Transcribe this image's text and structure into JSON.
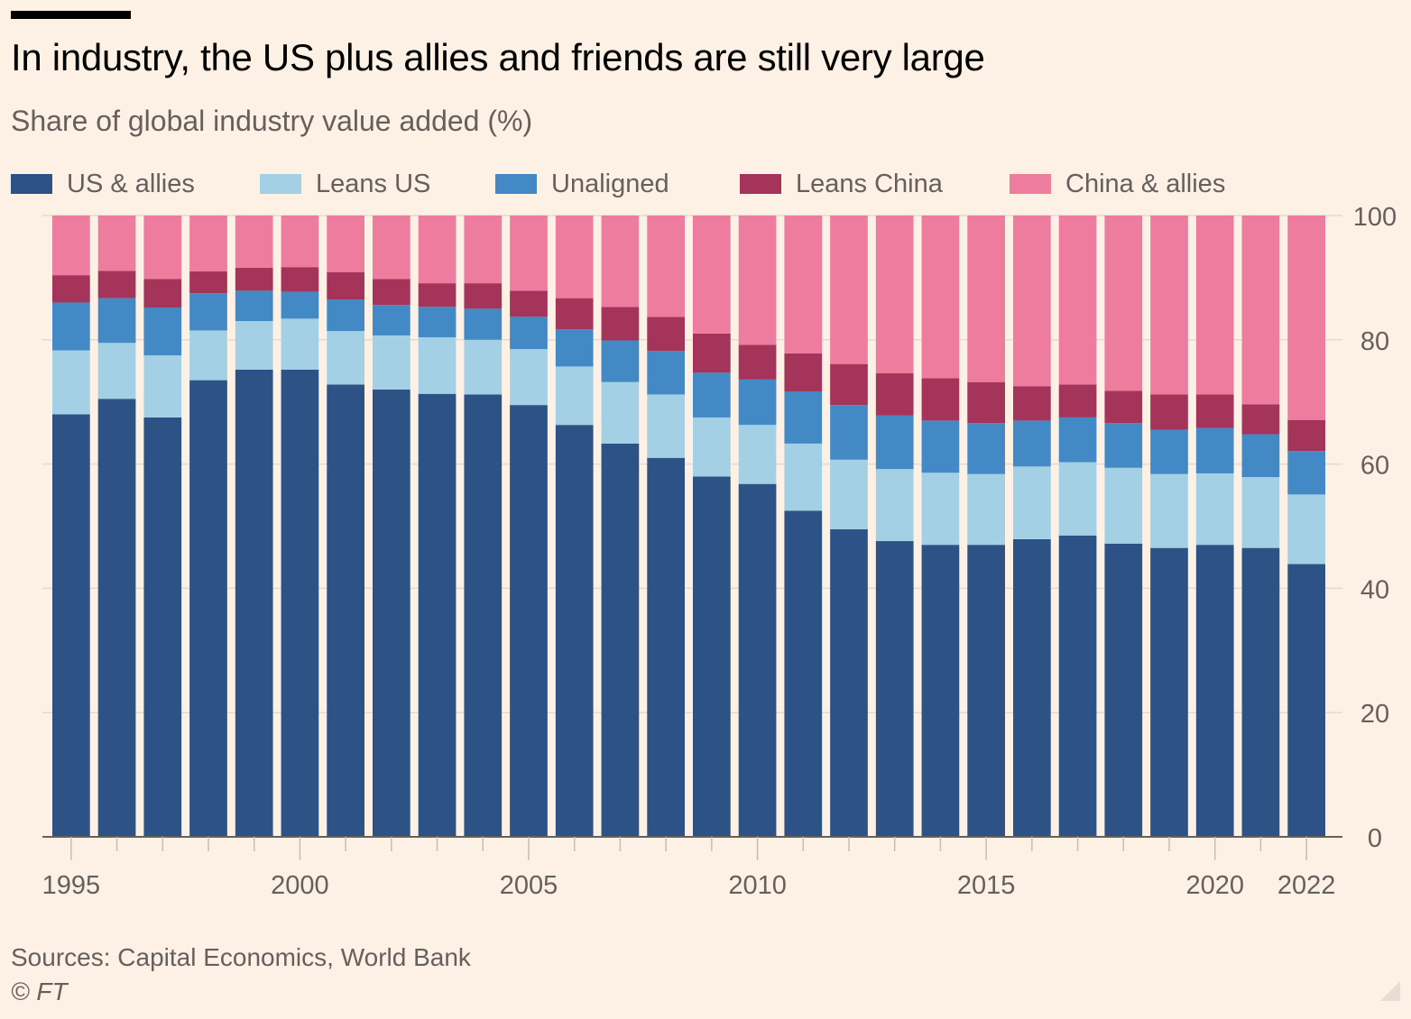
{
  "header": {
    "title": "In industry, the US plus allies and friends are still very large",
    "subtitle": "Share of global industry value added (%)"
  },
  "footer": {
    "source": "Sources: Capital Economics, World Bank",
    "copyright": "© FT"
  },
  "chart_data": {
    "type": "bar",
    "stacked": true,
    "title": "In industry, the US plus allies and friends are still very large",
    "subtitle": "Share of global industry value added (%)",
    "xlabel": "",
    "ylabel": "",
    "ylim": [
      0,
      100
    ],
    "y_axis_position": "right",
    "y_ticks": [
      0,
      20,
      40,
      60,
      80,
      100
    ],
    "x_ticks": [
      "1995",
      "2000",
      "2005",
      "2010",
      "2015",
      "2020",
      "2022"
    ],
    "grid": true,
    "legend_position": "top",
    "categories": [
      "1995",
      "1996",
      "1997",
      "1998",
      "1999",
      "2000",
      "2001",
      "2002",
      "2003",
      "2004",
      "2005",
      "2006",
      "2007",
      "2008",
      "2009",
      "2010",
      "2011",
      "2012",
      "2013",
      "2014",
      "2015",
      "2016",
      "2017",
      "2018",
      "2019",
      "2020",
      "2021",
      "2022"
    ],
    "series": [
      {
        "name": "US & allies",
        "color": "#2d5386",
        "values": [
          68.0,
          70.5,
          67.5,
          73.5,
          75.2,
          75.2,
          72.8,
          72.0,
          71.3,
          71.2,
          69.5,
          66.3,
          63.3,
          61.0,
          58.0,
          56.8,
          52.5,
          49.5,
          47.6,
          47.0,
          47.0,
          47.9,
          48.5,
          47.2,
          46.5,
          47.0,
          46.5,
          43.9
        ]
      },
      {
        "name": "Leans US",
        "color": "#a3d0e4",
        "values": [
          10.3,
          9.0,
          10.0,
          8.0,
          7.8,
          8.2,
          8.6,
          8.7,
          9.1,
          8.8,
          9.0,
          9.4,
          9.9,
          10.2,
          9.5,
          9.5,
          10.8,
          11.2,
          11.6,
          11.6,
          11.4,
          11.7,
          11.8,
          12.2,
          11.9,
          11.5,
          11.4,
          11.2
        ]
      },
      {
        "name": "Unaligned",
        "color": "#4389c6",
        "values": [
          7.7,
          7.2,
          7.7,
          6.0,
          4.9,
          4.3,
          5.1,
          4.9,
          4.9,
          5.0,
          5.2,
          6.0,
          6.7,
          7.0,
          7.2,
          7.3,
          8.4,
          8.8,
          8.6,
          8.4,
          8.2,
          7.4,
          7.2,
          7.2,
          7.1,
          7.3,
          6.9,
          7.0
        ]
      },
      {
        "name": "Leans China",
        "color": "#a4345a",
        "values": [
          4.4,
          4.4,
          4.6,
          3.5,
          3.7,
          4.0,
          4.4,
          4.2,
          3.8,
          4.1,
          4.2,
          5.0,
          5.4,
          5.5,
          6.3,
          5.6,
          6.1,
          6.6,
          6.8,
          6.8,
          6.6,
          5.5,
          5.3,
          5.2,
          5.7,
          5.4,
          4.8,
          5.0
        ]
      },
      {
        "name": "China & allies",
        "color": "#ee7c9f",
        "values": [
          9.6,
          8.9,
          10.2,
          9.0,
          8.4,
          8.3,
          9.1,
          10.2,
          10.9,
          10.9,
          12.1,
          13.3,
          14.7,
          16.3,
          19.0,
          20.8,
          22.2,
          23.9,
          25.4,
          26.2,
          26.8,
          27.5,
          27.2,
          28.2,
          28.8,
          28.8,
          30.4,
          32.9
        ]
      }
    ]
  }
}
